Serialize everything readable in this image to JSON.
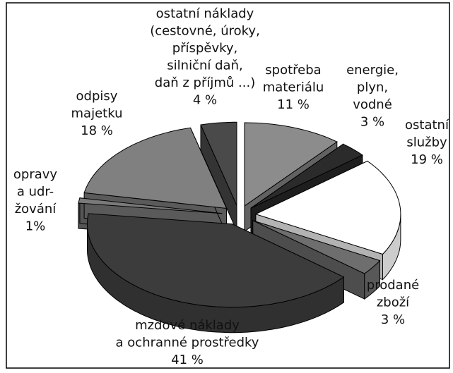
{
  "chart_data": {
    "type": "pie3d",
    "categories": [
      [
        "spotřeba",
        "materiálu"
      ],
      [
        "energie,",
        "plyn,",
        "vodné"
      ],
      [
        "ostatní",
        "služby"
      ],
      [
        "prodané",
        "zboží"
      ],
      [
        "mzdové náklady",
        "a ochranné prostředky"
      ],
      [
        "opravy",
        "a udr-",
        "žování"
      ],
      [
        "odpisy",
        "majetku"
      ],
      [
        "ostatní náklady",
        "(cestovné, úroky,",
        "příspěvky,",
        "silniční daň,",
        "daň z příjmů ...)"
      ]
    ],
    "values": [
      11,
      3,
      19,
      3,
      41,
      1,
      18,
      4
    ],
    "value_labels": [
      "11 %",
      "3 %",
      "19 %",
      "3 %",
      "41 %",
      "1%",
      "18 %",
      "4 %"
    ],
    "colors": [
      "#8c8c8c",
      "#2b2b2b",
      "#ffffff",
      "#6e6e6e",
      "#3c3c3c",
      "#7a7a7a",
      "#808080",
      "#4a4a4a"
    ]
  }
}
